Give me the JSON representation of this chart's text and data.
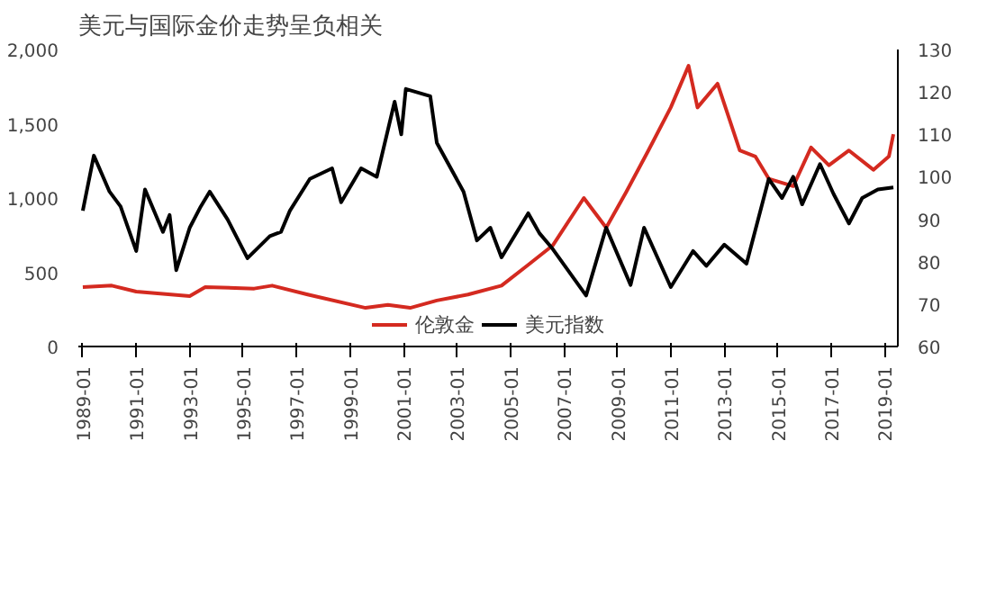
{
  "chart_data": {
    "type": "line",
    "title": "美元与国际金价走势呈负相关",
    "legend": "bottom",
    "grid": false,
    "xlim": [
      "1988-11",
      "2019-07"
    ],
    "xticks": [
      "1989-01",
      "1991-01",
      "1993-01",
      "1995-01",
      "1997-01",
      "1999-01",
      "2001-01",
      "2003-01",
      "2005-01",
      "2007-01",
      "2009-01",
      "2011-01",
      "2013-01",
      "2015-01",
      "2017-01",
      "2019-01"
    ],
    "ylim": [
      0,
      2000
    ],
    "yticks": [
      0,
      {
        "value": 500,
        "label": "500"
      },
      {
        "value": 1000,
        "label": "1,000"
      },
      {
        "value": 1500,
        "label": "1,500"
      },
      {
        "value": 2000,
        "label": "2,000"
      }
    ],
    "y2lim": [
      60,
      130
    ],
    "y2ticks": [
      60,
      70,
      80,
      90,
      100,
      110,
      120,
      130
    ],
    "series": [
      {
        "name": "伦敦金",
        "color": "#d42a20",
        "x": [
          "1989-01",
          "1990-02",
          "1991-01",
          "1993-01",
          "1993-08",
          "1995-06",
          "1996-02",
          "1997-06",
          "1999-08",
          "2000-06",
          "2001-04",
          "2002-04",
          "2003-06",
          "2004-09",
          "2005-09",
          "2006-08",
          "2007-10",
          "2008-08",
          "2009-05",
          "2010-03",
          "2011-01",
          "2011-09",
          "2012-01",
          "2012-10",
          "2013-08",
          "2014-03",
          "2014-09",
          "2015-08",
          "2016-04",
          "2016-12",
          "2017-09",
          "2018-08",
          "2019-03",
          "2019-05"
        ],
        "values": [
          400,
          410,
          370,
          340,
          400,
          390,
          410,
          350,
          260,
          280,
          260,
          310,
          350,
          410,
          550,
          680,
          1000,
          800,
          1040,
          1320,
          1610,
          1890,
          1610,
          1770,
          1320,
          1280,
          1130,
          1080,
          1340,
          1220,
          1320,
          1190,
          1280,
          1430
        ]
      },
      {
        "name": "美元指数",
        "color": "#000000",
        "axis": "y2",
        "x": [
          "1989-01",
          "1989-06",
          "1990-01",
          "1990-06",
          "1991-01",
          "1991-05",
          "1992-01",
          "1992-04",
          "1992-07",
          "1993-01",
          "1993-06",
          "1993-10",
          "1994-06",
          "1995-03",
          "1996-01",
          "1996-06",
          "1996-10",
          "1997-07",
          "1998-05",
          "1998-09",
          "1999-06",
          "2000-01",
          "2000-09",
          "2000-12",
          "2001-02",
          "2002-01",
          "2002-04",
          "2003-04",
          "2003-10",
          "2004-04",
          "2004-09",
          "2005-09",
          "2006-02",
          "2006-08",
          "2007-11",
          "2008-08",
          "2009-07",
          "2010-01",
          "2011-01",
          "2011-11",
          "2012-05",
          "2013-01",
          "2013-11",
          "2014-09",
          "2015-03",
          "2015-08",
          "2015-12",
          "2016-08",
          "2017-02",
          "2017-09",
          "2018-03",
          "2018-10",
          "2019-05"
        ],
        "values": [
          92,
          105,
          96.5,
          93,
          82.5,
          97,
          87,
          91,
          78,
          88,
          93,
          96.5,
          90,
          80.8,
          86,
          87,
          92,
          99.5,
          102,
          94,
          102,
          100,
          117.7,
          110,
          120.7,
          119,
          108,
          96.5,
          85,
          88,
          81,
          91.4,
          86.7,
          83,
          72,
          88,
          74.5,
          88,
          74,
          82.5,
          79,
          84,
          79.5,
          99.5,
          95,
          100,
          93.5,
          103,
          96,
          89,
          95,
          97,
          97.5
        ]
      }
    ]
  }
}
